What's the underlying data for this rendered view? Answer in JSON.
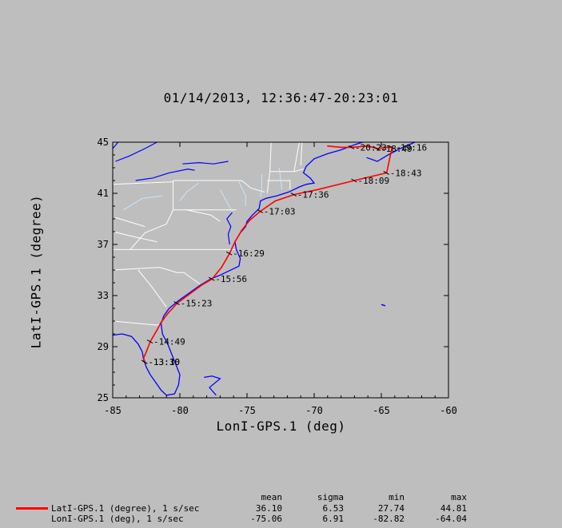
{
  "title": "01/14/2013, 12:36:47-20:23:01",
  "colors": {
    "background": "#bebebe",
    "track": "#ff0000",
    "coast": "#0000ff",
    "borders": "#ffffff",
    "rivers": "#c8e6ff"
  },
  "chart_data": {
    "type": "line",
    "title": "01/14/2013, 12:36:47-20:23:01",
    "xlabel": "LonI-GPS.1 (deg)",
    "ylabel": "LatI-GPS.1 (degree)",
    "xlim": [
      -85,
      -60
    ],
    "ylim": [
      25,
      45
    ],
    "xticks": [
      -85,
      -80,
      -75,
      -70,
      -65,
      -60
    ],
    "yticks": [
      25,
      29,
      33,
      37,
      41,
      45
    ],
    "grid": false,
    "map_background": true,
    "series": [
      {
        "name": "LatI-GPS.1 (degree), 1 s/sec",
        "color": "#ff0000",
        "points": [
          [
            -82.6,
            27.8
          ],
          [
            -82.7,
            28.1
          ],
          [
            -82.5,
            28.6
          ],
          [
            -82.2,
            29.4
          ],
          [
            -81.7,
            30.3
          ],
          [
            -81.4,
            30.9
          ],
          [
            -80.9,
            31.6
          ],
          [
            -80.2,
            32.4
          ],
          [
            -79.3,
            33.1
          ],
          [
            -78.4,
            33.8
          ],
          [
            -77.6,
            34.3
          ],
          [
            -76.9,
            35.2
          ],
          [
            -76.3,
            36.3
          ],
          [
            -75.9,
            37.2
          ],
          [
            -75.4,
            38.1
          ],
          [
            -74.8,
            38.9
          ],
          [
            -74.0,
            39.6
          ],
          [
            -72.9,
            40.4
          ],
          [
            -71.5,
            40.9
          ],
          [
            -69.7,
            41.3
          ],
          [
            -67.0,
            42.0
          ],
          [
            -64.6,
            42.6
          ],
          [
            -64.2,
            44.6
          ],
          [
            -64.6,
            44.6
          ],
          [
            -65.3,
            44.5
          ],
          [
            -66.0,
            44.7
          ],
          [
            -67.2,
            44.6
          ],
          [
            -68.0,
            44.6
          ],
          [
            -69.0,
            44.7
          ]
        ]
      }
    ],
    "time_labels": [
      {
        "text": "13:10",
        "lon": -82.6,
        "lat": 27.8
      },
      {
        "text": "13:30",
        "lon": -82.6,
        "lat": 27.8
      },
      {
        "text": "14:49",
        "lon": -82.2,
        "lat": 29.4
      },
      {
        "text": "15:23",
        "lon": -80.2,
        "lat": 32.4
      },
      {
        "text": "15:56",
        "lon": -77.6,
        "lat": 34.3
      },
      {
        "text": "16:29",
        "lon": -76.3,
        "lat": 36.3
      },
      {
        "text": "17:03",
        "lon": -74.0,
        "lat": 39.6
      },
      {
        "text": "17:36",
        "lon": -71.5,
        "lat": 40.9
      },
      {
        "text": "18:09",
        "lon": -67.0,
        "lat": 42.0
      },
      {
        "text": "18:43",
        "lon": -64.6,
        "lat": 42.6
      },
      {
        "text": "19:16",
        "lon": -64.2,
        "lat": 44.6
      },
      {
        "text": "18:49",
        "lon": -65.3,
        "lat": 44.5
      },
      {
        "text": "20:23",
        "lon": -67.2,
        "lat": 44.6
      }
    ]
  },
  "legend": {
    "headers": [
      "mean",
      "sigma",
      "min",
      "max"
    ],
    "rows": [
      {
        "label": "LatI-GPS.1 (degree), 1 s/sec",
        "mean": "36.10",
        "sigma": "6.53",
        "min": "27.74",
        "max": "44.81",
        "swatch": true
      },
      {
        "label": "LonI-GPS.1 (deg), 1 s/sec",
        "mean": "-75.06",
        "sigma": "6.91",
        "min": "-82.82",
        "max": "-64.04",
        "swatch": false
      }
    ]
  }
}
